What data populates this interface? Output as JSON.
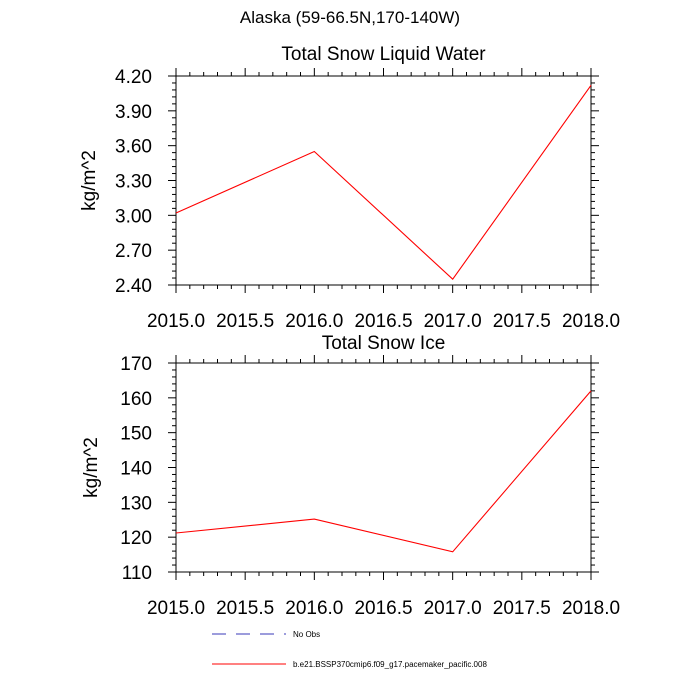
{
  "figure": {
    "suptitle": "Alaska (59-66.5N,170-140W)"
  },
  "colors": {
    "model_line": "#ff0000",
    "obs_line": "#3a3ab8",
    "axes": "#000000"
  },
  "chart_data": [
    {
      "type": "line",
      "title": "Total Snow Liquid Water",
      "xlabel": "",
      "ylabel": "kg/m^2",
      "xlim": [
        2015.0,
        2018.0
      ],
      "ylim": [
        2.4,
        4.2
      ],
      "x_ticks": [
        "2015.0",
        "2015.5",
        "2016.0",
        "2016.5",
        "2017.0",
        "2017.5",
        "2018.0"
      ],
      "y_ticks": [
        "2.40",
        "2.70",
        "3.00",
        "3.30",
        "3.60",
        "3.90",
        "4.20"
      ],
      "grid": false,
      "series": [
        {
          "name": "b.e21.BSSP370cmip6.f09_g17.pacemaker_pacific.008",
          "x": [
            2015.0,
            2016.0,
            2017.0,
            2018.0
          ],
          "y": [
            3.02,
            3.55,
            2.45,
            4.12
          ]
        }
      ]
    },
    {
      "type": "line",
      "title": "Total Snow Ice",
      "xlabel": "",
      "ylabel": "kg/m^2",
      "xlim": [
        2015.0,
        2018.0
      ],
      "ylim": [
        110,
        170
      ],
      "x_ticks": [
        "2015.0",
        "2015.5",
        "2016.0",
        "2016.5",
        "2017.0",
        "2017.5",
        "2018.0"
      ],
      "y_ticks": [
        "110",
        "120",
        "130",
        "140",
        "150",
        "160",
        "170"
      ],
      "grid": false,
      "series": [
        {
          "name": "b.e21.BSSP370cmip6.f09_g17.pacemaker_pacific.008",
          "x": [
            2015.0,
            2016.0,
            2017.0,
            2018.0
          ],
          "y": [
            121.2,
            125.2,
            115.8,
            162.0
          ]
        }
      ]
    }
  ],
  "legend": {
    "placement": "bottom-center",
    "entries": [
      {
        "label": "No Obs",
        "style": "dashed",
        "color": "#3a3ab8"
      },
      {
        "label": "b.e21.BSSP370cmip6.f09_g17.pacemaker_pacific.008",
        "style": "solid",
        "color": "#ff0000"
      }
    ]
  }
}
